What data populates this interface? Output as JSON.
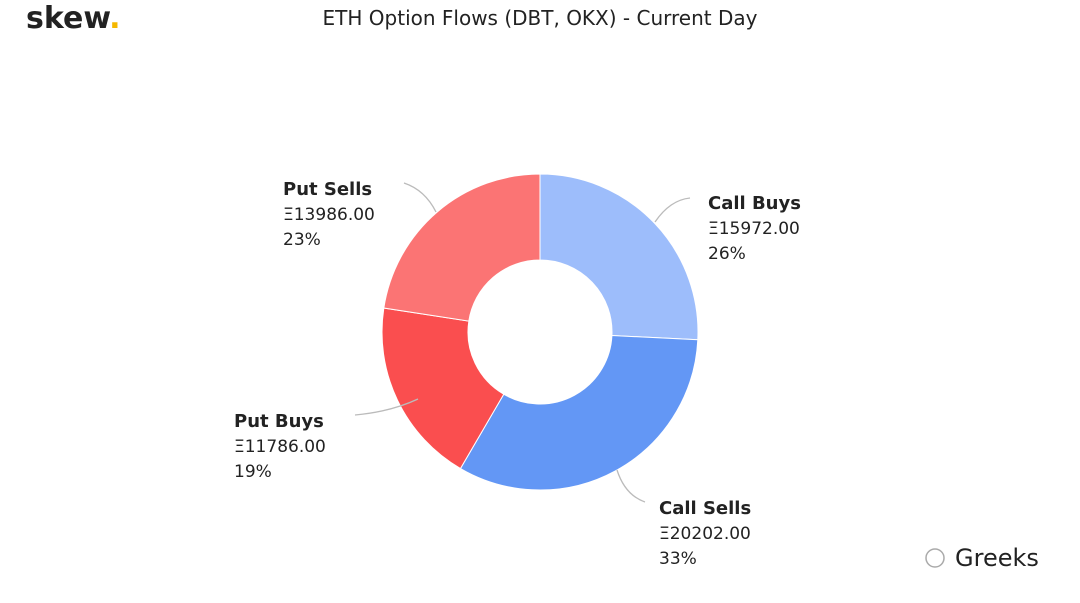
{
  "logo": "skew",
  "logo_dot": ".",
  "watermark": "Greeks",
  "chart_data": {
    "type": "donut",
    "title": "ETH Option Flows (DBT, OKX) - Current Day",
    "categories": [
      "Call Buys",
      "Call Sells",
      "Put Buys",
      "Put Sells"
    ],
    "values": [
      15972,
      20202,
      11786,
      13986
    ],
    "value_labels": [
      "Ξ15972.00",
      "Ξ20202.00",
      "Ξ11786.00",
      "Ξ13986.00"
    ],
    "percents": [
      26,
      33,
      19,
      23
    ],
    "percent_labels": [
      "26%",
      "33%",
      "19%",
      "23%"
    ],
    "colors": [
      "#9dbdfb",
      "#6397f5",
      "#fa4e4f",
      "#fb7474"
    ]
  }
}
